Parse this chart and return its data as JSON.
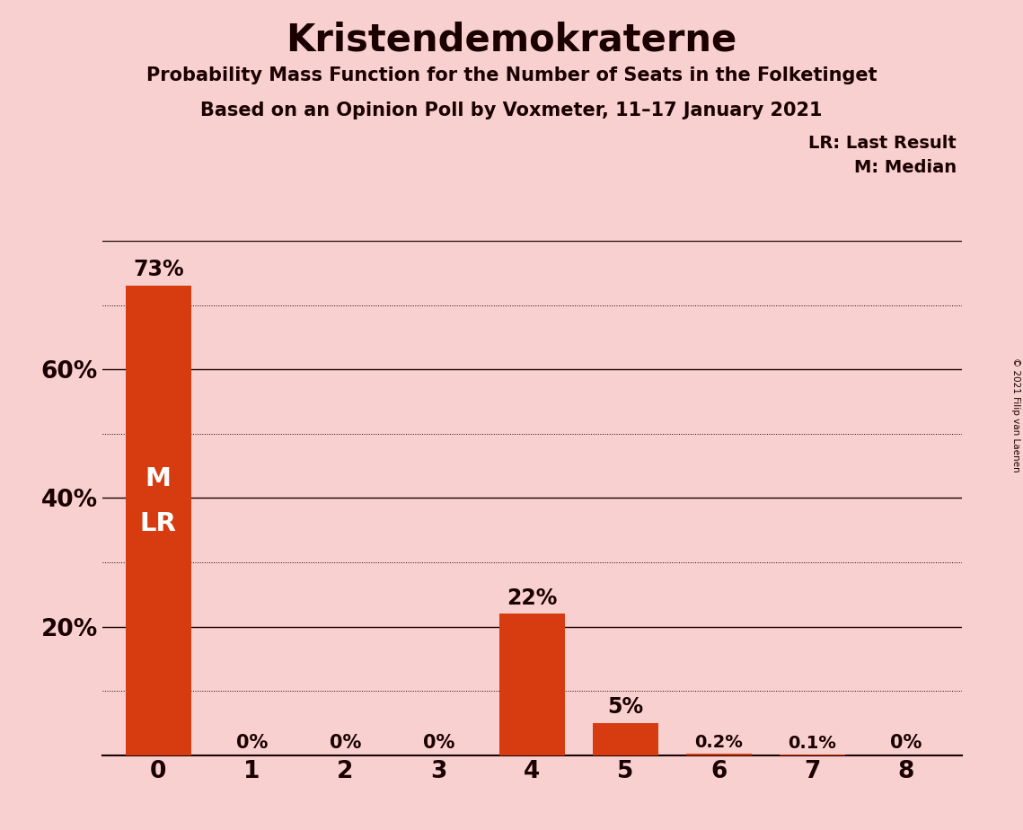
{
  "title": "Kristendemokraterne",
  "subtitle": "Probability Mass Function for the Number of Seats in the Folketinget",
  "subsubtitle": "Based on an Opinion Poll by Voxmeter, 11–17 January 2021",
  "copyright": "© 2021 Filip van Laenen",
  "categories": [
    0,
    1,
    2,
    3,
    4,
    5,
    6,
    7,
    8
  ],
  "values": [
    73,
    0,
    0,
    0,
    22,
    5,
    0.2,
    0.1,
    0
  ],
  "bar_labels": [
    "73%",
    "0%",
    "0%",
    "0%",
    "22%",
    "5%",
    "0.2%",
    "0.1%",
    "0%"
  ],
  "bar_color": "#d63c10",
  "background_color": "#f9d0d0",
  "text_color": "#1a0000",
  "bar_label_color_light": "#ffffff",
  "median_label": "M",
  "last_result_label": "LR",
  "median_bar": 0,
  "last_result_bar": 0,
  "legend_lr": "LR: Last Result",
  "legend_m": "M: Median",
  "ylim": [
    0,
    80
  ],
  "ytick_positions": [
    20,
    40,
    60
  ],
  "ytick_labels": [
    "20%",
    "40%",
    "60%"
  ],
  "grid_solid": [
    20,
    40,
    60,
    80
  ],
  "grid_dotted": [
    10,
    30,
    50,
    70
  ]
}
